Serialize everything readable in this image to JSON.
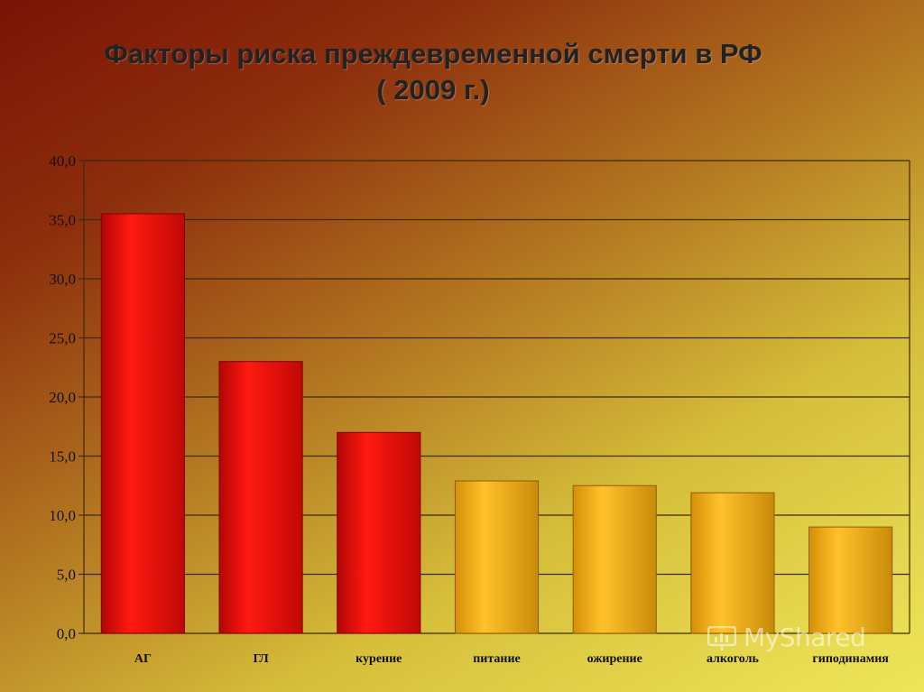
{
  "title": {
    "line1": "Факторы риска преждевременной смерти в РФ",
    "line2": "( 2009 г.)"
  },
  "watermark": {
    "text": "MyShared"
  },
  "colors": {
    "red_bar": "#e30f0a",
    "gold_bar": "#f2b21a",
    "grid": "#3b2a12"
  },
  "chart_data": {
    "type": "bar",
    "title": "Факторы риска преждевременной смерти в РФ ( 2009 г.)",
    "categories": [
      "АГ",
      "ГЛ",
      "курение",
      "питание",
      "ожирение",
      "алкоголь",
      "гиподинамия"
    ],
    "values": [
      35.5,
      23.0,
      17.0,
      12.9,
      12.5,
      11.9,
      9.0
    ],
    "bar_colors": [
      "red",
      "red",
      "red",
      "gold",
      "gold",
      "gold",
      "gold"
    ],
    "ylim": [
      0,
      40
    ],
    "yticks": [
      "0,0",
      "5,0",
      "10,0",
      "15,0",
      "20,0",
      "25,0",
      "30,0",
      "35,0",
      "40,0"
    ],
    "grid": true,
    "legend": "none",
    "xlabel": "",
    "ylabel": ""
  }
}
